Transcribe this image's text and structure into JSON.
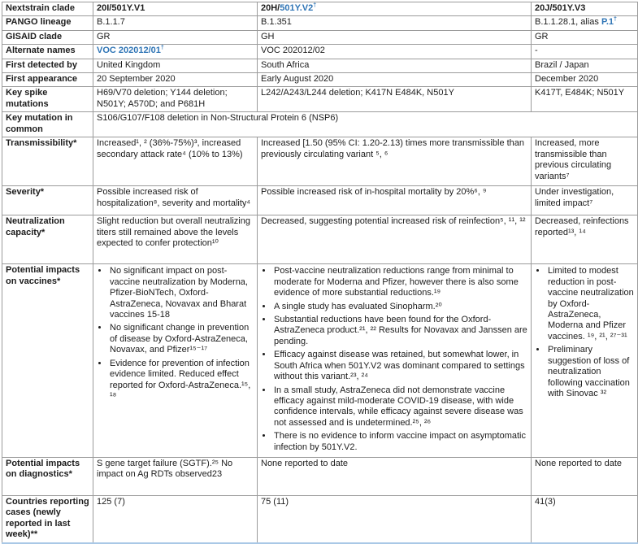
{
  "accent": {
    "link_blue": "#2E74B5",
    "border_gray": "#9b9b9b",
    "outer_bottom_blue": "#a9c8e6"
  },
  "table": {
    "dagger": "†",
    "header": {
      "label": "Nextstrain clade",
      "v1": "20I/501Y.V1",
      "v2_prefix": "20H/",
      "v2_link": "501Y.V2",
      "v3": "20J/501Y.V3"
    },
    "pango": {
      "label": "PANGO lineage",
      "v1": "B.1.1.7",
      "v2": "B.1.351",
      "v3_prefix": "B.1.1.28.1, alias ",
      "v3_link": "P.1"
    },
    "gisaid": {
      "label": "GISAID clade",
      "v1": "GR",
      "v2": "GH",
      "v3": "GR"
    },
    "alternate": {
      "label": "Alternate names",
      "v1_link": "VOC 202012/01",
      "v2": "VOC 202012/02",
      "v3": "-"
    },
    "detected": {
      "label": "First detected by",
      "v1": "United Kingdom",
      "v2": "South Africa",
      "v3": "Brazil / Japan"
    },
    "appearance": {
      "label": "First appearance",
      "v1": "20 September 2020",
      "v2": "Early August 2020",
      "v3": "December 2020"
    },
    "spike": {
      "label": "Key spike mutations",
      "v1": "H69/V70 deletion; Y144 deletion; N501Y; A570D;  and P681H",
      "v2": "L242/A243/L244 deletion; K417N E484K, N501Y",
      "v3": "K417T, E484K; N501Y"
    },
    "common": {
      "label": "Key mutation in common",
      "text": "S106/G107/F108 deletion in Non-Structural Protein 6 (NSP6)"
    },
    "transmissibility": {
      "label": "Transmissibility*",
      "v1": "Increased¹, ² (36%-75%)³, increased secondary attack rate⁴ (10% to 13%)",
      "v2": "Increased [1.50 (95% CI: 1.20-2.13) times more transmissible than previously circulating variant ⁵, ⁶",
      "v3": "Increased, more transmissible than previous circulating variants⁷"
    },
    "severity": {
      "label": "Severity*",
      "v1": "Possible increased risk of hospitalization⁸, severity and mortality⁴",
      "v2": "Possible increased risk of in-hospital mortality by 20%⁶, ⁹",
      "v3": "Under investigation, limited impact⁷"
    },
    "neutralization": {
      "label": "Neutralization capacity*",
      "v1": "Slight reduction but overall neutralizing titers still remained above the levels expected to confer protection¹⁰",
      "v2": "Decreased, suggesting potential increased risk of reinfection⁵, ¹¹, ¹²",
      "v3": "Decreased, reinfections reported¹³, ¹⁴"
    },
    "vaccines": {
      "label": "Potential impacts on vaccines*",
      "v1_bullets": [
        "No significant impact on post-vaccine neutralization by Moderna, Pfizer-BioNTech, Oxford-AstraZeneca, Novavax and Bharat vaccines 15-18",
        "No significant change in prevention of disease by Oxford-AstraZeneca, Novavax, and Pfizer¹⁵⁻¹⁷",
        "Evidence for prevention of infection evidence limited. Reduced effect reported for Oxford-AstraZeneca.¹⁵, ¹⁸"
      ],
      "v2_bullets": [
        "Post-vaccine neutralization reductions range from minimal to moderate for Moderna and Pfizer, however there is also some evidence of more substantial reductions.¹⁹",
        "A single study has evaluated Sinopharm.²⁰",
        "Substantial reductions have been found for the Oxford-AstraZeneca product.²¹, ²² Results for Novavax and Janssen are pending.",
        "Efficacy against disease was retained, but somewhat lower, in South Africa when 501Y.V2 was dominant compared to settings without this variant.²³, ²⁴",
        "In a small study, AstraZeneca did not demonstrate vaccine efficacy against mild-moderate COVID-19 disease, with wide confidence intervals, while efficacy against  severe disease was not assessed and is undetermined.²⁵, ²⁶",
        "There is no evidence to inform vaccine impact on asymptomatic infection by 501Y.V2."
      ],
      "v3_bullets": [
        "Limited to modest reduction in post-vaccine neutralization by Oxford-AstraZeneca, Moderna and Pfizer vaccines. ¹⁹, ²¹, ²⁷⁻³¹",
        "Preliminary suggestion of loss of neutralization following vaccination with Sinovac ³²"
      ]
    },
    "diagnostics": {
      "label": "Potential impacts on diagnostics*",
      "v1": "S gene target failure (SGTF).²⁵ No impact on Ag RDTs observed23",
      "v2": "None reported to date",
      "v3": "None reported to date"
    },
    "countries": {
      "label": "Countries reporting cases (newly reported in last week)**",
      "v1": "125 (7)",
      "v2": "75 (11)",
      "v3": "41(3)"
    }
  }
}
